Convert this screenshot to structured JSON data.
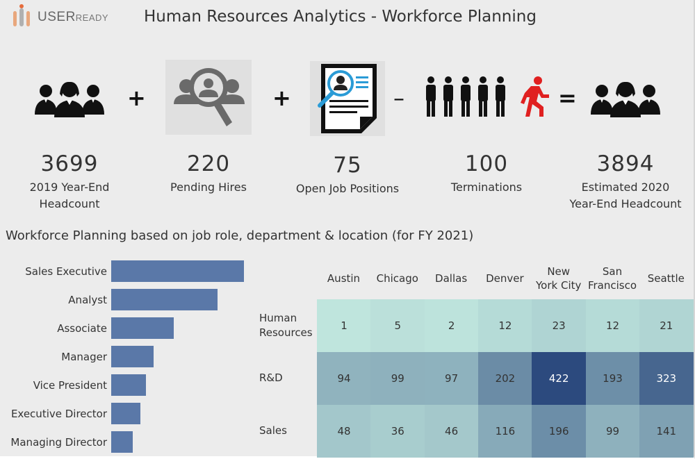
{
  "header": {
    "logo_text_main": "USER",
    "logo_text_sub": "READY",
    "title": "Human Resources Analytics - Workforce Planning"
  },
  "kpis": [
    {
      "value": "3699",
      "label_line1": "2019 Year-End",
      "label_line2": "Headcount",
      "icon": "team-icon"
    },
    {
      "value": "220",
      "label_line1": "Pending Hires",
      "label_line2": "",
      "icon": "candidate-search-icon"
    },
    {
      "value": "75",
      "label_line1": "Open Job Positions",
      "label_line2": "",
      "icon": "resume-document-icon"
    },
    {
      "value": "100",
      "label_line1": "Terminations",
      "label_line2": "",
      "icon": "people-leaving-icon"
    },
    {
      "value": "3894",
      "label_line1": "Estimated 2020",
      "label_line2": "Year-End Headcount",
      "icon": "team-icon"
    }
  ],
  "operators": [
    "+",
    "+",
    "–",
    "="
  ],
  "section_title": "Workforce Planning based on job role, department & location (for FY 2021)",
  "colors": {
    "bar": "#5a78a8",
    "heat_low": "#bfe5dd",
    "heat_high": "#2c4a7e",
    "background": "#ececec"
  },
  "chart_data": [
    {
      "type": "bar",
      "orientation": "horizontal",
      "categories": [
        "Sales Executive",
        "Analyst",
        "Associate",
        "Manager",
        "Vice President",
        "Executive Director",
        "Managing Director"
      ],
      "values": [
        100,
        80,
        47,
        32,
        26,
        22,
        16
      ],
      "value_scale": "relative (no axis shown)"
    },
    {
      "type": "heatmap",
      "columns": [
        "Austin",
        "Chicago",
        "Dallas",
        "Denver",
        "New York City",
        "San Francisco",
        "Seattle"
      ],
      "rows": [
        "Human Resources",
        "R&D",
        "Sales"
      ],
      "values": [
        [
          1,
          5,
          2,
          12,
          23,
          12,
          21
        ],
        [
          94,
          99,
          97,
          202,
          422,
          193,
          323
        ],
        [
          48,
          36,
          46,
          116,
          196,
          99,
          141
        ]
      ]
    }
  ]
}
